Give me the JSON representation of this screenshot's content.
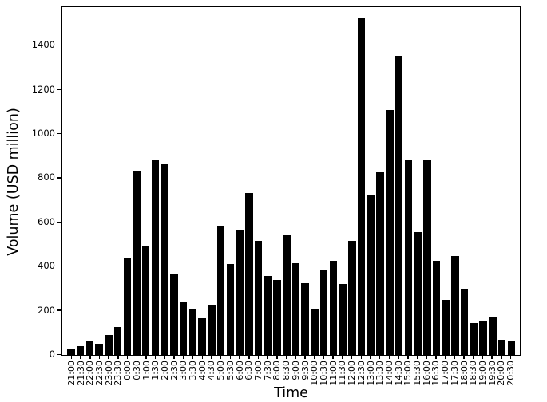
{
  "figure": {
    "background_color": "#ffffff",
    "bar_color": "#000000",
    "axis_color": "#000000"
  },
  "chart_data": {
    "type": "bar",
    "title": "",
    "xlabel": "Time",
    "ylabel": "Volume (USD million)",
    "categories": [
      "21:00",
      "21:30",
      "22:00",
      "22:30",
      "23:00",
      "23:30",
      "0:00",
      "0:30",
      "1:00",
      "1:30",
      "2:00",
      "2:30",
      "3:00",
      "3:30",
      "4:00",
      "4:30",
      "5:00",
      "5:30",
      "6:00",
      "6:30",
      "7:00",
      "7:30",
      "8:00",
      "8:30",
      "9:00",
      "9:30",
      "10:00",
      "10:30",
      "11:00",
      "11:30",
      "12:00",
      "12:30",
      "13:00",
      "13:30",
      "14:00",
      "14:30",
      "15:00",
      "15:30",
      "16:00",
      "16:30",
      "17:00",
      "17:30",
      "18:00",
      "18:30",
      "19:00",
      "19:30",
      "20:00",
      "20:30"
    ],
    "values": [
      30,
      40,
      60,
      50,
      90,
      125,
      435,
      830,
      495,
      880,
      860,
      365,
      240,
      205,
      165,
      225,
      585,
      410,
      565,
      730,
      515,
      355,
      340,
      540,
      415,
      325,
      210,
      385,
      425,
      320,
      515,
      1520,
      720,
      825,
      1105,
      1350,
      880,
      555,
      880,
      425,
      250,
      445,
      300,
      145,
      155,
      170,
      70,
      65
    ],
    "yticks": [
      0,
      200,
      400,
      600,
      800,
      1000,
      1200,
      1400
    ],
    "ylim": [
      0,
      1570
    ],
    "grid": false,
    "legend": null,
    "bar_orientation": "vertical",
    "xtick_rotation_degrees": 90
  }
}
